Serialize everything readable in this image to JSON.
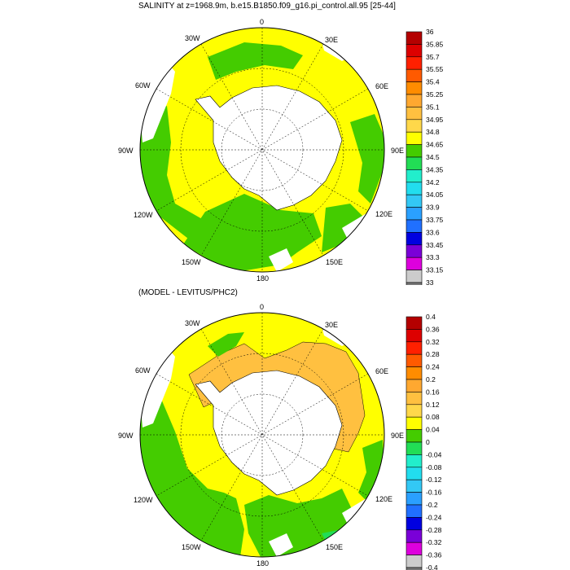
{
  "panels": [
    {
      "title": "SALINITY at z=1968.9m, b.e15.B1850.f09_g16.pi_control.all.95 [25-44]",
      "lon_labels": {
        "lon_0": "0",
        "lon_30E": "30E",
        "lon_60E": "60E",
        "lon_90E": "90E",
        "lon_120E": "120E",
        "lon_150E": "150E",
        "lon_180": "180",
        "lon_150W": "150W",
        "lon_120W": "120W",
        "lon_90W": "90W",
        "lon_60W": "60W",
        "lon_30W": "30W"
      },
      "colorbar": {
        "labels": [
          "36",
          "35.85",
          "35.7",
          "35.55",
          "35.4",
          "35.25",
          "35.1",
          "34.95",
          "34.8",
          "34.65",
          "34.5",
          "34.35",
          "34.2",
          "34.05",
          "33.9",
          "33.75",
          "33.6",
          "33.45",
          "33.3",
          "33.15",
          "33"
        ],
        "colors": [
          "#b40000",
          "#dd0000",
          "#ff2000",
          "#ff5a00",
          "#ff8c00",
          "#ffa830",
          "#ffc040",
          "#ffd84a",
          "#ffff00",
          "#44cc00",
          "#22dd55",
          "#22eecc",
          "#22ddee",
          "#33c8f5",
          "#2aa0ff",
          "#2070ff",
          "#0000e0",
          "#7a00d8",
          "#dd00dd",
          "#cccccc",
          "#777777"
        ]
      },
      "map_colors": {
        "dominant": "#ffff00",
        "secondary": "#44cc00",
        "land": "#ffffff",
        "accent": "#ffd84a"
      }
    },
    {
      "title": "(MODEL - LEVITUS/PHC2)",
      "lon_labels": {
        "lon_0": "0",
        "lon_30E": "30E",
        "lon_60E": "60E",
        "lon_90E": "90E",
        "lon_120E": "120E",
        "lon_150E": "150E",
        "lon_180": "180",
        "lon_150W": "150W",
        "lon_120W": "120W",
        "lon_90W": "90W",
        "lon_60W": "60W",
        "lon_30W": "30W"
      },
      "colorbar": {
        "labels": [
          "0.4",
          "0.36",
          "0.32",
          "0.28",
          "0.24",
          "0.2",
          "0.16",
          "0.12",
          "0.08",
          "0.04",
          "0",
          "-0.04",
          "-0.08",
          "-0.12",
          "-0.16",
          "-0.2",
          "-0.24",
          "-0.28",
          "-0.32",
          "-0.36",
          "-0.4"
        ],
        "colors": [
          "#b40000",
          "#dd0000",
          "#ff2000",
          "#ff5a00",
          "#ff8c00",
          "#ffa830",
          "#ffc040",
          "#ffd84a",
          "#ffff00",
          "#44cc00",
          "#22dd55",
          "#22eecc",
          "#22ddee",
          "#33c8f5",
          "#2aa0ff",
          "#2070ff",
          "#0000e0",
          "#7a00d8",
          "#dd00dd",
          "#cccccc",
          "#777777"
        ]
      },
      "map_colors": {
        "dominant": "#ffff00",
        "secondary": "#44cc00",
        "land": "#ffffff",
        "accent": "#ffc040"
      }
    }
  ]
}
